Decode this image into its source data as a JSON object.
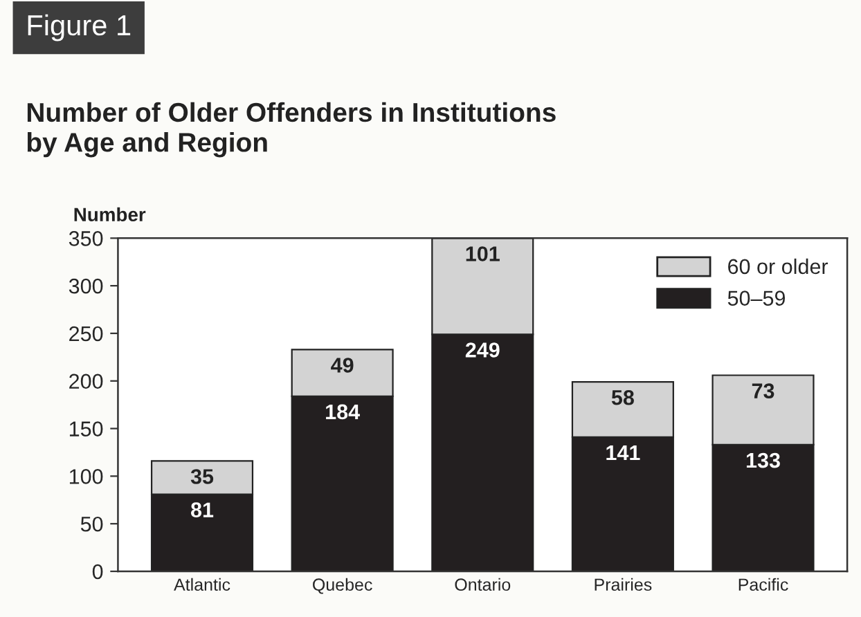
{
  "chart_data": {
    "type": "bar",
    "stacked": true,
    "annotations": [
      "Figure 1"
    ],
    "title": "Number of Older Offenders in Institutions\nby Age and Region",
    "ylabel": "Number",
    "categories": [
      "Atlantic",
      "Quebec",
      "Ontario",
      "Prairies",
      "Pacific"
    ],
    "series": [
      {
        "name": "50–59",
        "color": "#231f20",
        "values": [
          81,
          184,
          249,
          141,
          133
        ]
      },
      {
        "name": "60 or older",
        "color": "#d3d3d3",
        "values": [
          35,
          49,
          101,
          58,
          73
        ]
      }
    ],
    "ylim": [
      0,
      350
    ],
    "yticks": [
      0,
      50,
      100,
      150,
      200,
      250,
      300,
      350
    ],
    "data_labels": true,
    "legend": "top right",
    "grid": false
  }
}
